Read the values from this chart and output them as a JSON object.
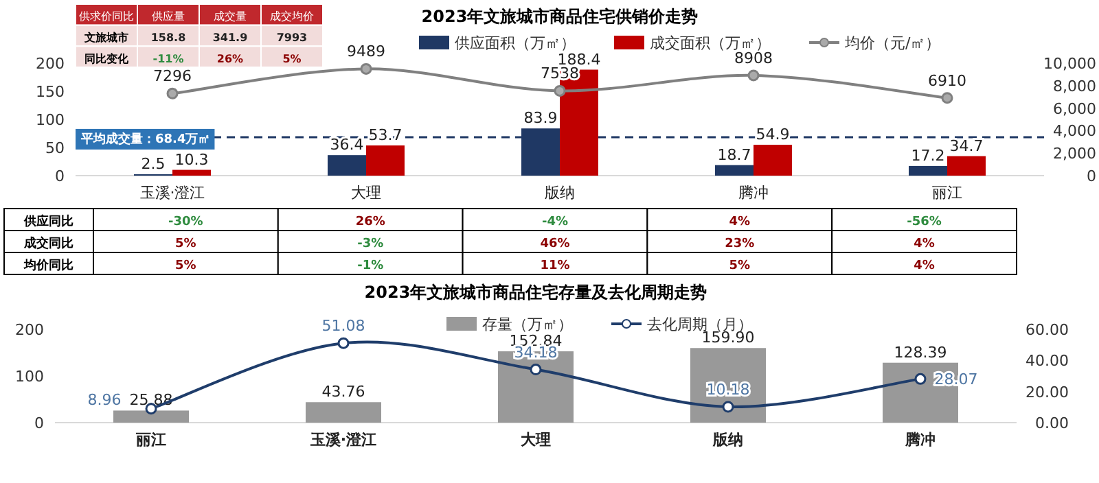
{
  "chart_data": [
    {
      "type": "bar",
      "title": "2023年文旅城市商品住宅供销价走势",
      "categories": [
        "玉溪·澄江",
        "大理",
        "版纳",
        "腾冲",
        "丽江"
      ],
      "series": [
        {
          "name": "供应面积（万㎡）",
          "color": "#1f3864",
          "values": [
            2.5,
            36.4,
            83.9,
            18.7,
            17.2
          ]
        },
        {
          "name": "成交面积（万㎡）",
          "color": "#c00000",
          "values": [
            10.3,
            53.7,
            188.4,
            54.9,
            34.7
          ]
        },
        {
          "name": "均价（元/㎡）",
          "type": "line",
          "axis": "y2",
          "color": "#808080",
          "marker": "circle",
          "values": [
            7296,
            9489,
            7538,
            8908,
            6910
          ]
        }
      ],
      "data_labels": true,
      "ylim": [
        0,
        200
      ],
      "yticks": [
        0,
        50,
        100,
        150,
        200
      ],
      "y2lim": [
        0,
        10000
      ],
      "y2ticks": [
        0,
        {
          "value": 2000,
          "label": "2,000"
        },
        {
          "value": 4000,
          "label": "4,000"
        },
        {
          "value": 6000,
          "label": "6,000"
        },
        {
          "value": 8000,
          "label": "8,000"
        },
        {
          "value": 10000,
          "label": "10,000"
        }
      ],
      "ref_lines": [
        {
          "axis": "y",
          "value": 68.4,
          "label": "平均成交量：68.4万㎡",
          "color": "#1f3864",
          "line_style": "dashed"
        }
      ],
      "legend": "top"
    },
    {
      "type": "other",
      "title": "供求价同比",
      "categories": [
        "供应量",
        "成交量",
        "成交均价"
      ],
      "y_categories": [
        "文旅城市",
        "同比变化"
      ],
      "colors": [
        [
          "#222222",
          "#222222",
          "#222222"
        ],
        [
          "#2e8b3e",
          "#8b0000",
          "#8b0000"
        ]
      ],
      "cell_labels": [
        [
          "158.8",
          "341.9",
          "7993"
        ],
        [
          "-11%",
          "26%",
          "5%"
        ]
      ]
    },
    {
      "type": "other",
      "categories": [
        null,
        null,
        null,
        null,
        null
      ],
      "y_categories": [
        "供应同比",
        "成交同比",
        "均价同比"
      ],
      "colors": [
        [
          "#2e8b3e",
          "#8b0000",
          "#2e8b3e",
          "#8b0000",
          "#2e8b3e"
        ],
        [
          "#8b0000",
          "#2e8b3e",
          "#8b0000",
          "#8b0000",
          "#8b0000"
        ],
        [
          "#8b0000",
          "#2e8b3e",
          "#8b0000",
          "#8b0000",
          "#8b0000"
        ]
      ],
      "cell_labels": [
        [
          "-30%",
          "26%",
          "-4%",
          "4%",
          "-56%"
        ],
        [
          "5%",
          "-3%",
          "46%",
          "23%",
          "4%"
        ],
        [
          "5%",
          "-1%",
          "11%",
          "5%",
          "4%"
        ]
      ]
    },
    {
      "type": "bar",
      "title": "2023年文旅城市商品住宅存量及去化周期走势",
      "categories": [
        "丽江",
        "玉溪·澄江",
        "大理",
        "版纳",
        "腾冲"
      ],
      "series": [
        {
          "name": "存量（万㎡）",
          "color": "#999999",
          "values": [
            25.88,
            43.76,
            152.84,
            159.9,
            128.39
          ],
          "value_labels": [
            "25.88",
            "43.76",
            "152.84",
            "159.90",
            "128.39"
          ]
        },
        {
          "name": "去化周期（月）",
          "type": "line",
          "axis": "y2",
          "color": "#1f3d6b",
          "marker": "circle",
          "values": [
            8.96,
            51.08,
            34.18,
            10.18,
            28.07
          ],
          "value_labels": [
            "8.96",
            "51.08",
            "34.18",
            "10.18",
            "28.07"
          ]
        }
      ],
      "ylim": [
        0,
        200
      ],
      "yticks": [
        0,
        100,
        200
      ],
      "y2lim": [
        0,
        60
      ],
      "y2ticks": [
        {
          "value": 0,
          "label": "0.00"
        },
        {
          "value": 20,
          "label": "20.00"
        },
        {
          "value": 40,
          "label": "40.00"
        },
        {
          "value": 60,
          "label": "60.00"
        }
      ],
      "legend": "top"
    }
  ]
}
